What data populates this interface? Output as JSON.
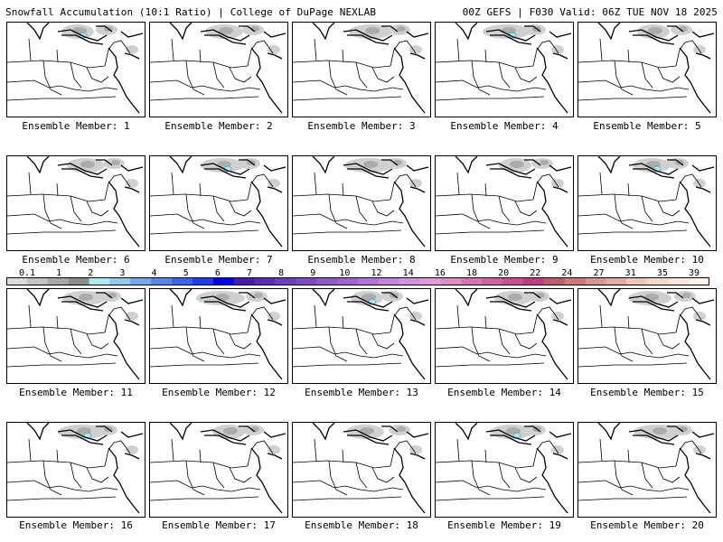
{
  "header": {
    "title": "Snowfall Accumulation (10:1 Ratio) | College of DuPage NEXLAB",
    "run_info": "00Z GEFS | F030 Valid: 06Z TUE NOV 18 2025"
  },
  "colorbar": {
    "labels": [
      "0.1",
      "1",
      "2",
      "3",
      "4",
      "5",
      "6",
      "7",
      "8",
      "9",
      "10",
      "12",
      "14",
      "16",
      "18",
      "20",
      "22",
      "24",
      "27",
      "31",
      "35",
      "39"
    ],
    "colors": [
      "#dcdcdc",
      "#c4c4c4",
      "#a8a8a8",
      "#8c8c8c",
      "#a6eeee",
      "#8ec8ec",
      "#74a8ec",
      "#5688ea",
      "#3868ea",
      "#1a3ef0",
      "#0000f0",
      "#4a1ab0",
      "#5c2ab8",
      "#6e3cbe",
      "#8048c6",
      "#9256ce",
      "#a462d6",
      "#b670de",
      "#c880e2",
      "#d88ee4",
      "#e49ad8",
      "#e28ac8",
      "#da70b8",
      "#d45ea8",
      "#cc4c98",
      "#c43888",
      "#c45a70",
      "#d07878",
      "#dc9290",
      "#e6aca4",
      "#f0c6b8",
      "#f6d8ca",
      "#fae8dc",
      "#fdf4ec"
    ]
  },
  "panels": [
    {
      "caption": "Ensemble Member: 1"
    },
    {
      "caption": "Ensemble Member: 2"
    },
    {
      "caption": "Ensemble Member: 3"
    },
    {
      "caption": "Ensemble Member: 4"
    },
    {
      "caption": "Ensemble Member: 5"
    },
    {
      "caption": "Ensemble Member: 6"
    },
    {
      "caption": "Ensemble Member: 7"
    },
    {
      "caption": "Ensemble Member: 8"
    },
    {
      "caption": "Ensemble Member: 9"
    },
    {
      "caption": "Ensemble Member: 10"
    },
    {
      "caption": "Ensemble Member: 11"
    },
    {
      "caption": "Ensemble Member: 12"
    },
    {
      "caption": "Ensemble Member: 13"
    },
    {
      "caption": "Ensemble Member: 14"
    },
    {
      "caption": "Ensemble Member: 15"
    },
    {
      "caption": "Ensemble Member: 16"
    },
    {
      "caption": "Ensemble Member: 17"
    },
    {
      "caption": "Ensemble Member: 18"
    },
    {
      "caption": "Ensemble Member: 19"
    },
    {
      "caption": "Ensemble Member: 20"
    }
  ]
}
